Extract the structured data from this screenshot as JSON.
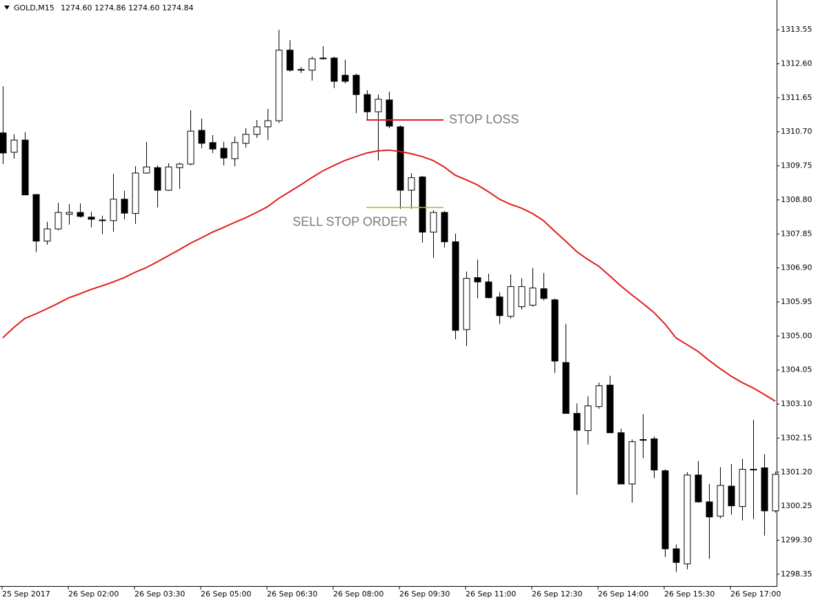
{
  "chart_data": {
    "type": "candlestick",
    "title": "GOLD,M15",
    "subtitle": "1274.60 1274.86 1274.60 1274.84",
    "categories": [
      "25 Sep 2017",
      null,
      null,
      null,
      null,
      null,
      "26 Sep 02:00",
      null,
      null,
      null,
      null,
      null,
      "26 Sep 03:30",
      null,
      null,
      null,
      null,
      null,
      "26 Sep 05:00",
      null,
      null,
      null,
      null,
      null,
      "26 Sep 06:30",
      null,
      null,
      null,
      null,
      null,
      "26 Sep 08:00",
      null,
      null,
      null,
      null,
      null,
      "26 Sep 09:30",
      null,
      null,
      null,
      null,
      null,
      "26 Sep 11:00",
      null,
      null,
      null,
      null,
      null,
      "26 Sep 12:30",
      null,
      null,
      null,
      null,
      null,
      "26 Sep 14:00",
      null,
      null,
      null,
      null,
      null,
      "26 Sep 15:30",
      null,
      null,
      null,
      null,
      null,
      "26 Sep 17:00",
      null,
      null,
      null,
      null
    ],
    "open": [
      1310.67,
      1310.13,
      1310.47,
      1308.95,
      1307.65,
      1307.99,
      1308.4,
      1308.45,
      1308.32,
      1308.24,
      1308.22,
      1308.82,
      1308.42,
      1309.55,
      1309.7,
      1309.07,
      1309.7,
      1309.8,
      1310.74,
      1310.4,
      1310.24,
      1309.95,
      1310.38,
      1310.63,
      1310.84,
      1311.01,
      1312.98,
      1312.44,
      1312.42,
      1312.76,
      1312.76,
      1312.28,
      1312.28,
      1311.74,
      1311.26,
      1311.59,
      1310.84,
      1309.07,
      1309.44,
      1307.9,
      1308.45,
      1307.63,
      1305.18,
      1306.63,
      1306.51,
      1306.09,
      1305.55,
      1305.82,
      1305.86,
      1306.32,
      1306.01,
      1304.26,
      1302.84,
      1302.36,
      1303.03,
      1303.63,
      1302.3,
      1300.87,
      1302.11,
      1302.13,
      1301.24,
      1299.06,
      1298.64,
      1301.12,
      1300.37,
      1299.97,
      1300.81,
      1300.24,
      1301.28,
      1301.32,
      1300.12
    ],
    "high": [
      1311.97,
      1310.63,
      1310.69,
      1308.95,
      1308.19,
      1308.72,
      1308.68,
      1308.7,
      1308.47,
      1308.36,
      1309.53,
      1309.05,
      1309.74,
      1310.42,
      1309.76,
      1309.82,
      1309.84,
      1311.3,
      1311.07,
      1310.61,
      1310.42,
      1310.57,
      1310.8,
      1311.03,
      1311.34,
      1313.55,
      1313.26,
      1312.51,
      1312.8,
      1313.09,
      1312.8,
      1312.71,
      1312.32,
      1311.86,
      1311.74,
      1311.82,
      1310.88,
      1309.55,
      1309.47,
      1308.51,
      1308.49,
      1307.86,
      1306.8,
      1307.13,
      1306.74,
      1306.22,
      1306.72,
      1306.61,
      1306.9,
      1306.76,
      1306.05,
      1305.34,
      1303.12,
      1303.32,
      1303.7,
      1303.89,
      1302.41,
      1302.11,
      1302.82,
      1302.2,
      1301.28,
      1299.18,
      1301.2,
      1301.51,
      1300.87,
      1301.34,
      1301.43,
      1301.57,
      1302.66,
      1301.7,
      1301.22
    ],
    "low": [
      1309.8,
      1309.95,
      1308.94,
      1307.34,
      1307.55,
      1307.95,
      1308.11,
      1308.3,
      1308.03,
      1307.84,
      1307.91,
      1308.26,
      1308.13,
      1309.53,
      1308.59,
      1309.05,
      1309.11,
      1309.76,
      1310.24,
      1310.11,
      1309.76,
      1309.74,
      1310.26,
      1310.53,
      1310.47,
      1310.95,
      1312.38,
      1312.34,
      1312.13,
      1312.72,
      1311.92,
      1312.05,
      1311.22,
      1311.05,
      1309.9,
      1310.8,
      1308.55,
      1308.55,
      1307.61,
      1307.18,
      1307.47,
      1304.91,
      1304.72,
      1306.05,
      1306.05,
      1305.34,
      1305.49,
      1305.74,
      1305.82,
      1305.99,
      1303.97,
      1302.84,
      1300.57,
      1301.97,
      1302.97,
      1302.3,
      1300.87,
      1300.35,
      1301.59,
      1301.03,
      1298.83,
      1298.41,
      1298.49,
      1300.35,
      1298.78,
      1299.91,
      1300.01,
      1299.85,
      1299.89,
      1299.43,
      1300.07
    ],
    "close": [
      1310.11,
      1310.47,
      1308.94,
      1307.65,
      1307.99,
      1308.45,
      1308.45,
      1308.34,
      1308.26,
      1308.22,
      1308.82,
      1308.43,
      1309.55,
      1309.72,
      1309.07,
      1309.72,
      1309.8,
      1310.72,
      1310.38,
      1310.22,
      1309.97,
      1310.4,
      1310.63,
      1310.84,
      1311.01,
      1312.98,
      1312.42,
      1312.42,
      1312.74,
      1312.74,
      1312.11,
      1312.11,
      1311.74,
      1311.26,
      1311.61,
      1310.86,
      1309.07,
      1309.42,
      1307.9,
      1308.45,
      1307.63,
      1305.16,
      1306.61,
      1306.51,
      1306.07,
      1305.57,
      1306.38,
      1306.38,
      1306.34,
      1306.05,
      1304.3,
      1302.84,
      1302.37,
      1303.05,
      1303.61,
      1302.3,
      1300.87,
      1302.05,
      1302.09,
      1301.26,
      1299.06,
      1298.68,
      1301.12,
      1300.37,
      1299.95,
      1300.83,
      1300.26,
      1301.28,
      1301.26,
      1300.12,
      1301.14
    ],
    "up_color": "#ffffff",
    "down_color": "#000000",
    "outline_color": "#000000",
    "moving_average": {
      "color": "#e31a1c",
      "values": [
        1304.95,
        1305.24,
        1305.49,
        1305.62,
        1305.76,
        1305.91,
        1306.07,
        1306.18,
        1306.3,
        1306.4,
        1306.51,
        1306.63,
        1306.78,
        1306.91,
        1307.07,
        1307.24,
        1307.41,
        1307.59,
        1307.74,
        1307.9,
        1308.03,
        1308.17,
        1308.3,
        1308.45,
        1308.61,
        1308.84,
        1309.03,
        1309.22,
        1309.42,
        1309.61,
        1309.76,
        1309.9,
        1310.01,
        1310.11,
        1310.17,
        1310.19,
        1310.15,
        1310.09,
        1310.01,
        1309.9,
        1309.72,
        1309.49,
        1309.36,
        1309.22,
        1309.03,
        1308.82,
        1308.68,
        1308.57,
        1308.42,
        1308.22,
        1307.93,
        1307.65,
        1307.36,
        1307.14,
        1306.95,
        1306.68,
        1306.4,
        1306.15,
        1305.91,
        1305.66,
        1305.34,
        1304.95,
        1304.76,
        1304.57,
        1304.32,
        1304.09,
        1303.88,
        1303.7,
        1303.55,
        1303.37,
        1303.18
      ]
    },
    "annotations": [
      {
        "text": "STOP LOSS",
        "value": 1311.03,
        "color": "#e31a1c"
      },
      {
        "text": "SELL STOP ORDER",
        "value": 1308.59,
        "color": "#8cc63f"
      }
    ],
    "ylim": [
      1298.02,
      1314.38
    ],
    "yticks": [
      1313.55,
      {
        "value": 1312.6,
        "label": "1312.60"
      },
      1311.65,
      {
        "value": 1310.7,
        "label": "1310.70"
      },
      1309.75,
      {
        "value": 1308.8,
        "label": "1308.80"
      },
      1307.85,
      {
        "value": 1306.9,
        "label": "1306.90"
      },
      1305.95,
      {
        "value": 1305,
        "label": "1305.00"
      },
      1304.05,
      {
        "value": 1303.1,
        "label": "1303.10"
      },
      1302.15,
      {
        "value": 1301.2,
        "label": "1301.20"
      },
      1300.25,
      {
        "value": 1299.3,
        "label": "1299.30"
      },
      1298.35
    ]
  }
}
